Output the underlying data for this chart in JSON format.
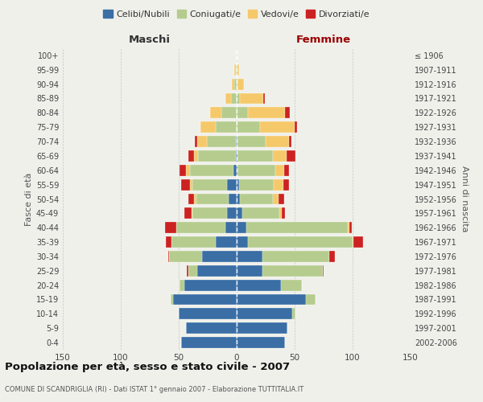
{
  "age_groups": [
    "0-4",
    "5-9",
    "10-14",
    "15-19",
    "20-24",
    "25-29",
    "30-34",
    "35-39",
    "40-44",
    "45-49",
    "50-54",
    "55-59",
    "60-64",
    "65-69",
    "70-74",
    "75-79",
    "80-84",
    "85-89",
    "90-94",
    "95-99",
    "100+"
  ],
  "birth_years": [
    "2002-2006",
    "1997-2001",
    "1992-1996",
    "1987-1991",
    "1982-1986",
    "1977-1981",
    "1972-1976",
    "1967-1971",
    "1962-1966",
    "1957-1961",
    "1952-1956",
    "1947-1951",
    "1942-1946",
    "1937-1941",
    "1932-1936",
    "1927-1931",
    "1922-1926",
    "1917-1921",
    "1912-1916",
    "1907-1911",
    "≤ 1906"
  ],
  "male": {
    "celibi": [
      48,
      44,
      50,
      55,
      45,
      34,
      30,
      18,
      10,
      8,
      7,
      8,
      3,
      1,
      1,
      0,
      0,
      0,
      0,
      0,
      0
    ],
    "coniugati": [
      0,
      0,
      0,
      2,
      4,
      8,
      28,
      38,
      42,
      30,
      28,
      30,
      37,
      32,
      25,
      18,
      13,
      5,
      2,
      1,
      0
    ],
    "vedovi": [
      0,
      0,
      0,
      0,
      0,
      0,
      0,
      0,
      0,
      1,
      2,
      2,
      4,
      4,
      8,
      13,
      10,
      5,
      2,
      1,
      0
    ],
    "divorziati": [
      0,
      0,
      0,
      0,
      0,
      1,
      1,
      5,
      10,
      6,
      5,
      8,
      5,
      5,
      2,
      0,
      0,
      0,
      0,
      0,
      0
    ]
  },
  "female": {
    "nubili": [
      42,
      44,
      48,
      60,
      38,
      22,
      22,
      10,
      8,
      5,
      3,
      2,
      1,
      1,
      0,
      0,
      0,
      0,
      0,
      0,
      0
    ],
    "coniugate": [
      0,
      0,
      3,
      8,
      18,
      52,
      58,
      90,
      88,
      32,
      28,
      30,
      32,
      30,
      25,
      20,
      10,
      3,
      1,
      0,
      0
    ],
    "vedove": [
      0,
      0,
      0,
      0,
      0,
      0,
      0,
      1,
      1,
      2,
      5,
      8,
      8,
      12,
      20,
      30,
      32,
      20,
      5,
      2,
      1
    ],
    "divorziate": [
      0,
      0,
      0,
      0,
      0,
      1,
      5,
      8,
      2,
      3,
      5,
      5,
      4,
      8,
      2,
      2,
      4,
      1,
      0,
      0,
      0
    ]
  },
  "colors": {
    "celibi": "#3a6ea5",
    "coniugati": "#b5cc8e",
    "vedovi": "#f5c96a",
    "divorziati": "#cc2222"
  },
  "title": "Popolazione per età, sesso e stato civile - 2007",
  "subtitle": "COMUNE DI SCANDRIGLIA (RI) - Dati ISTAT 1° gennaio 2007 - Elaborazione TUTTITALIA.IT",
  "xlabel_left": "Maschi",
  "xlabel_right": "Femmine",
  "ylabel_left": "Fasce di età",
  "ylabel_right": "Anni di nascita",
  "legend_labels": [
    "Celibi/Nubili",
    "Coniugati/e",
    "Vedovi/e",
    "Divorziati/e"
  ],
  "xlim": 150,
  "bg_color": "#f0f0eb",
  "femmine_color": "#990000",
  "maschi_color": "#333333"
}
